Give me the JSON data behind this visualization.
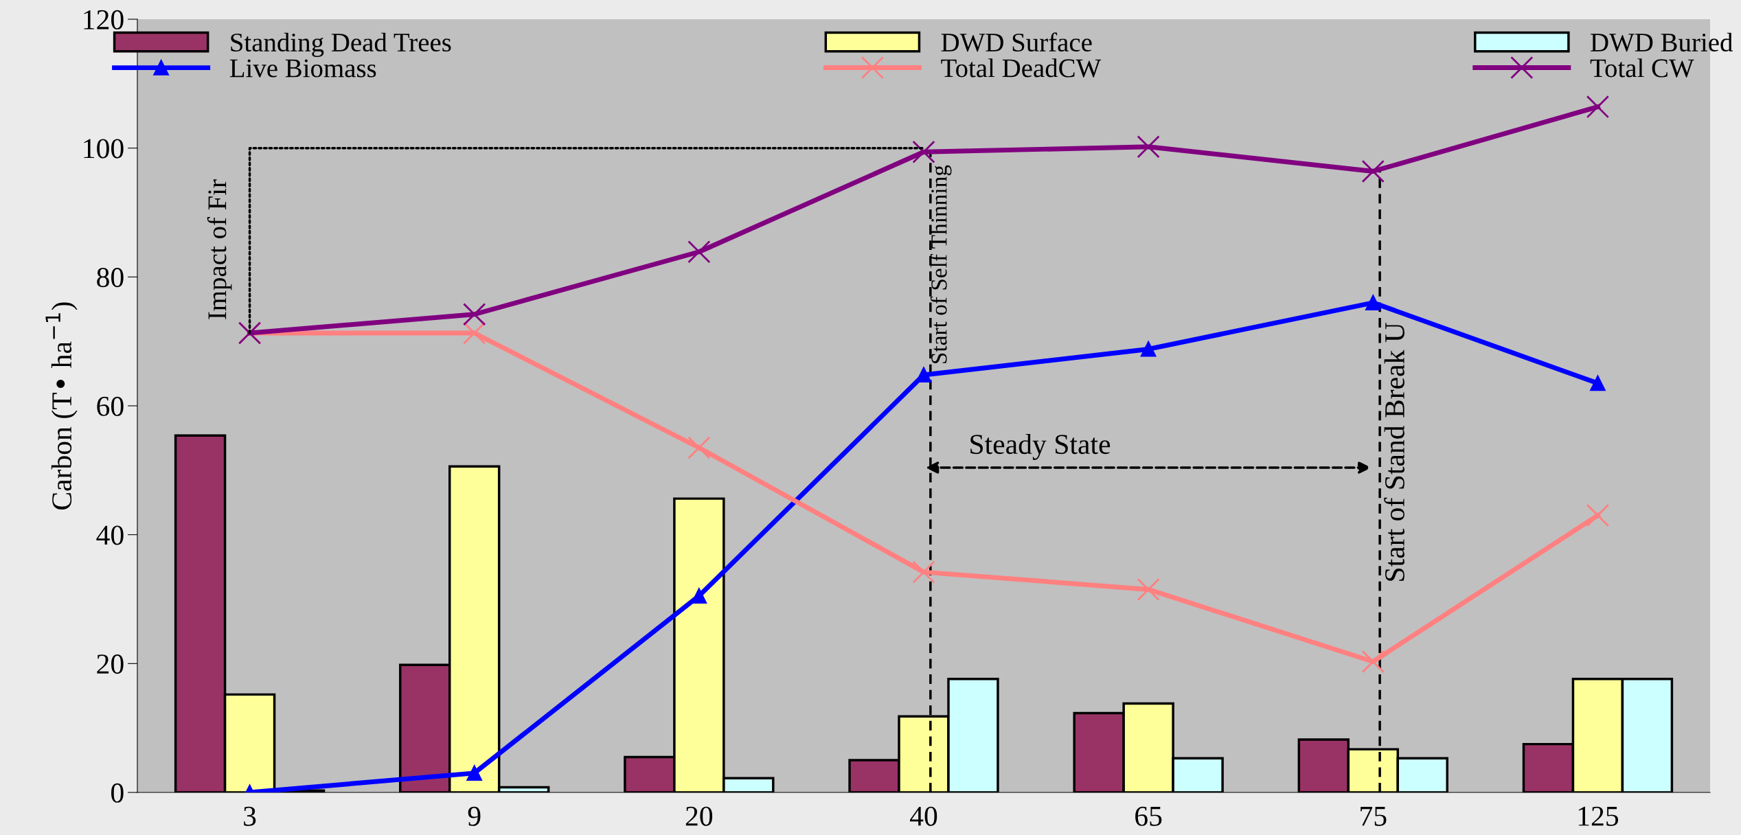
{
  "chart_data": {
    "type": "bar",
    "ylabel": "Carbon (T• ha$^{−1}$)",
    "categories": [
      "3",
      "9",
      "20",
      "40",
      "65",
      "75",
      "125"
    ],
    "series": [
      {
        "name": "Standing Dead Trees",
        "color": "#993366",
        "values": [
          55.4,
          19.8,
          5.5,
          5.0,
          12.3,
          8.2,
          7.5
        ]
      },
      {
        "name": "DWD Surface",
        "color": "#ffff99",
        "values": [
          15.2,
          50.6,
          45.6,
          11.8,
          13.8,
          6.7,
          17.6
        ]
      },
      {
        "name": "DWD Buried",
        "color": "#ccffff",
        "values": [
          0.3,
          0.8,
          2.2,
          17.6,
          5.3,
          5.3,
          17.6
        ]
      },
      {
        "name": "Live Biomass",
        "type": "line",
        "color": "#0000ff",
        "marker": "triangle",
        "values": [
          0,
          3.0,
          30.5,
          64.8,
          68.8,
          76.0,
          63.5
        ]
      },
      {
        "name": "Total DeadCW",
        "type": "line",
        "color": "#ff8080",
        "marker": "cross",
        "values": [
          71.3,
          71.3,
          53.5,
          34.2,
          31.5,
          20.3,
          43.0
        ]
      },
      {
        "name": "Total CW",
        "type": "line",
        "color": "#800080",
        "marker": "cross",
        "values": [
          71.3,
          74.2,
          83.9,
          99.4,
          100.2,
          96.4,
          106.4
        ]
      },
      {
        "type": "line",
        "color": "#000000",
        "line_style": "dotted",
        "x": [
          "3",
          "3",
          "40"
        ],
        "values": [
          71.3,
          100,
          100
        ]
      }
    ],
    "ref_lines": [
      {
        "axis": "x",
        "value": "40",
        "color": "#000000",
        "line_style": "dashed"
      },
      {
        "axis": "x",
        "value": "75",
        "color": "#000000",
        "line_style": "dashed"
      }
    ],
    "ylim": [
      0,
      120
    ],
    "yticks": [
      0,
      20,
      40,
      60,
      80,
      100,
      120
    ],
    "grid": false,
    "legend": "top",
    "annotations": [
      {
        "text": "Impact of Fir",
        "x": "3",
        "y": 71.3
      },
      {
        "text": "Start of Self Thinning",
        "x": "40",
        "y": 99.4
      },
      "Steady State",
      {
        "text": "Start of Stand Break U",
        "x": "75",
        "y": 76.0
      }
    ]
  }
}
